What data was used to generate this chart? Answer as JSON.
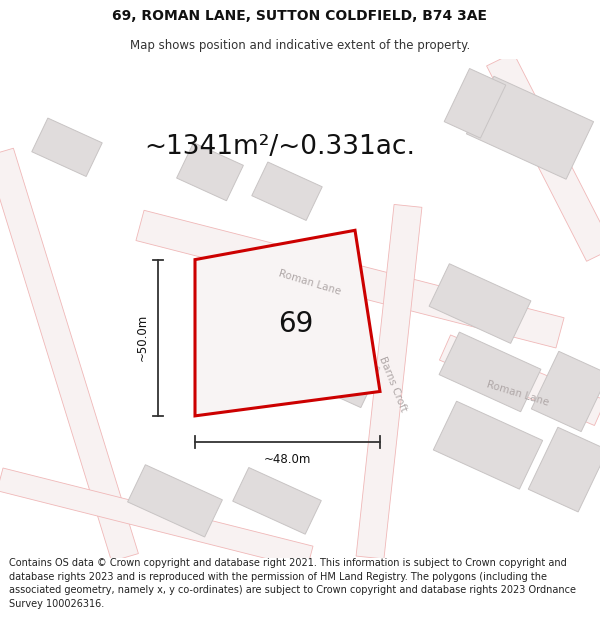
{
  "title_line1": "69, ROMAN LANE, SUTTON COLDFIELD, B74 3AE",
  "title_line2": "Map shows position and indicative extent of the property.",
  "area_text": "~1341m²/~0.331ac.",
  "number_label": "69",
  "dim_width": "~48.0m",
  "dim_height": "~50.0m",
  "footer_text": "Contains OS data © Crown copyright and database right 2021. This information is subject to Crown copyright and database rights 2023 and is reproduced with the permission of HM Land Registry. The polygons (including the associated geometry, namely x, y co-ordinates) are subject to Crown copyright and database rights 2023 Ordnance Survey 100026316.",
  "bg_color": "#ffffff",
  "map_bg": "#fafafa",
  "road_color": "#f0b8b8",
  "road_outline_color": "#e8a0a0",
  "building_fill": "#e0dcdc",
  "building_edge": "#c8c4c4",
  "property_fill": "#f8f4f4",
  "property_edge": "#cc0000",
  "road_label_color": "#b0a8a8",
  "dim_color": "#333333",
  "title_fontsize": 10,
  "subtitle_fontsize": 8.5,
  "area_fontsize": 19,
  "num_fontsize": 20,
  "dim_fontsize": 8.5,
  "footer_fontsize": 7.0,
  "road_lw": 2.0
}
